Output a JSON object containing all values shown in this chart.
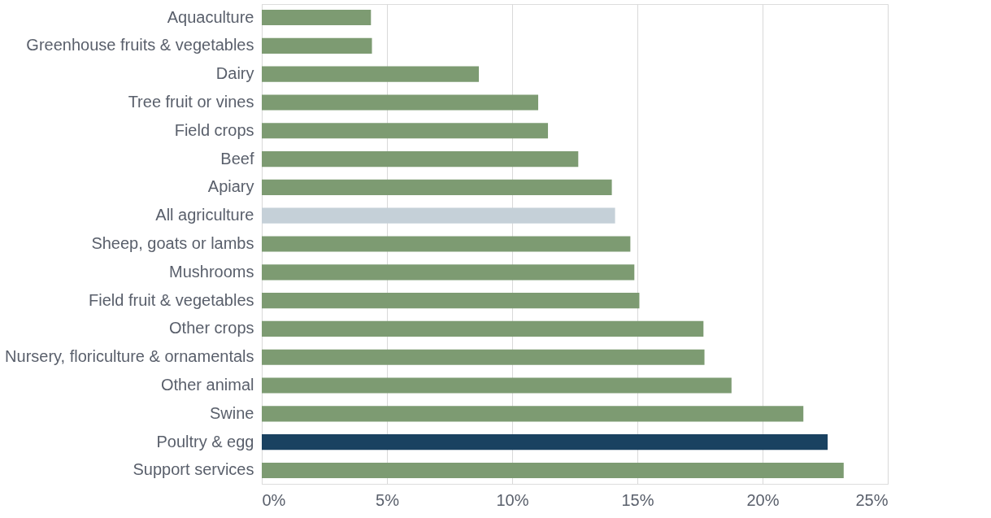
{
  "chart_data": {
    "type": "bar",
    "orientation": "horizontal",
    "categories": [
      "Aquaculture",
      "Greenhouse fruits & vegetables",
      "Dairy",
      "Tree fruit or vines",
      "Field crops",
      "Beef",
      "Apiary",
      "All agriculture",
      "Sheep, goats or lambs",
      "Mushrooms",
      "Field fruit & vegetables",
      "Other crops",
      "Nursery, floriculture & ornamentals",
      "Other animal",
      "Swine",
      "Poultry & egg",
      "Support services"
    ],
    "values": [
      4.36,
      4.4,
      8.67,
      11.04,
      11.43,
      12.64,
      13.98,
      14.11,
      14.72,
      14.88,
      15.08,
      17.64,
      17.68,
      18.76,
      21.63,
      22.6,
      23.24
    ],
    "colors": [
      "#7d9b72",
      "#7d9b72",
      "#7d9b72",
      "#7d9b72",
      "#7d9b72",
      "#7d9b72",
      "#7d9b72",
      "#c5d0d8",
      "#7d9b72",
      "#7d9b72",
      "#7d9b72",
      "#7d9b72",
      "#7d9b72",
      "#7d9b72",
      "#7d9b72",
      "#1a4261",
      "#7d9b72"
    ],
    "xlim": [
      0,
      25
    ],
    "xticks": [
      {
        "value": 0,
        "label": "0%"
      },
      {
        "value": 5,
        "label": "5%"
      },
      {
        "value": 10,
        "label": "10%"
      },
      {
        "value": 15,
        "label": "15%"
      },
      {
        "value": 20,
        "label": "20%"
      },
      {
        "value": 25,
        "label": "25%"
      }
    ],
    "grid": "x",
    "legend": false
  }
}
